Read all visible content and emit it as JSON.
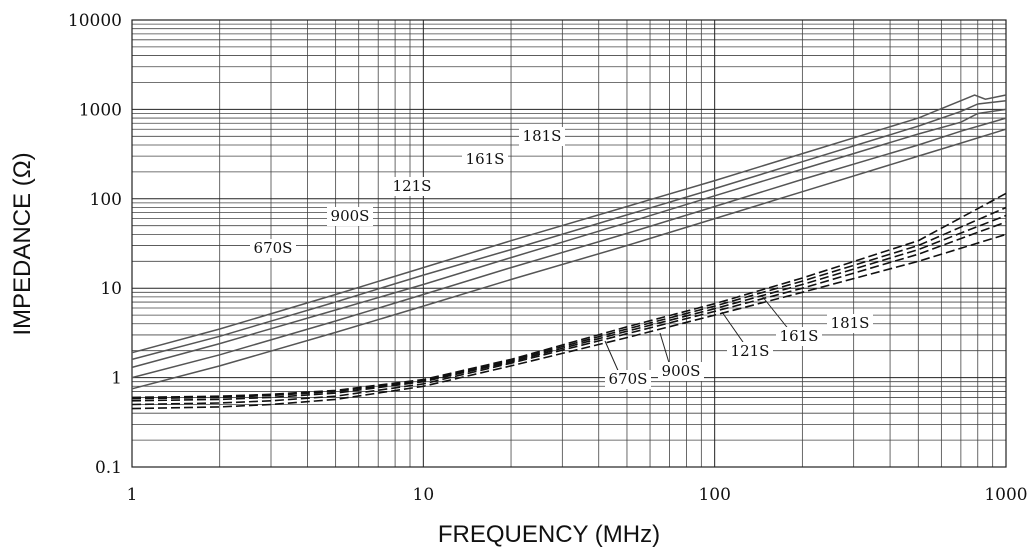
{
  "chart_data": {
    "type": "line",
    "xlabel": "FREQUENCY (MHz)",
    "ylabel": "IMPEDANCE (Ω)",
    "x_scale": "log",
    "y_scale": "log",
    "xlim": [
      1,
      1000
    ],
    "ylim": [
      0.1,
      10000
    ],
    "x_ticks": [
      "1",
      "10",
      "100",
      "1000"
    ],
    "y_ticks": [
      "0.1",
      "1",
      "10",
      "100",
      "1000",
      "10000"
    ],
    "grid": true,
    "series": [
      {
        "name": "670S",
        "group": "solid",
        "style": "solid",
        "label_on_chart": "670S",
        "points": [
          [
            1,
            0.75
          ],
          [
            2,
            1.35
          ],
          [
            5,
            3.2
          ],
          [
            10,
            6.3
          ],
          [
            20,
            12.5
          ],
          [
            50,
            30
          ],
          [
            100,
            60
          ],
          [
            200,
            120
          ],
          [
            500,
            300
          ],
          [
            700,
            420
          ],
          [
            1000,
            600
          ]
        ]
      },
      {
        "name": "900S",
        "group": "solid",
        "style": "solid",
        "label_on_chart": "900S",
        "points": [
          [
            1,
            1.0
          ],
          [
            2,
            1.8
          ],
          [
            5,
            4.3
          ],
          [
            10,
            8.5
          ],
          [
            20,
            17
          ],
          [
            50,
            41
          ],
          [
            100,
            82
          ],
          [
            200,
            165
          ],
          [
            500,
            400
          ],
          [
            700,
            570
          ],
          [
            1000,
            800
          ]
        ]
      },
      {
        "name": "121S",
        "group": "solid",
        "style": "solid",
        "label_on_chart": "121S",
        "points": [
          [
            1,
            1.3
          ],
          [
            2,
            2.4
          ],
          [
            5,
            5.7
          ],
          [
            10,
            11
          ],
          [
            20,
            22
          ],
          [
            50,
            54
          ],
          [
            100,
            108
          ],
          [
            200,
            215
          ],
          [
            500,
            530
          ],
          [
            700,
            720
          ],
          [
            800,
            900
          ],
          [
            1000,
            1000
          ]
        ]
      },
      {
        "name": "161S",
        "group": "solid",
        "style": "solid",
        "label_on_chart": "161S",
        "points": [
          [
            1,
            1.6
          ],
          [
            2,
            2.9
          ],
          [
            5,
            7
          ],
          [
            10,
            14
          ],
          [
            20,
            27
          ],
          [
            50,
            66
          ],
          [
            100,
            130
          ],
          [
            200,
            260
          ],
          [
            500,
            650
          ],
          [
            700,
            950
          ],
          [
            800,
            1150
          ],
          [
            1000,
            1250
          ]
        ]
      },
      {
        "name": "181S",
        "group": "solid",
        "style": "solid",
        "label_on_chart": "181S",
        "points": [
          [
            1,
            1.9
          ],
          [
            2,
            3.5
          ],
          [
            5,
            8.5
          ],
          [
            10,
            17
          ],
          [
            20,
            34
          ],
          [
            50,
            82
          ],
          [
            100,
            160
          ],
          [
            200,
            320
          ],
          [
            500,
            800
          ],
          [
            700,
            1250
          ],
          [
            780,
            1450
          ],
          [
            850,
            1300
          ],
          [
            1000,
            1450
          ]
        ]
      },
      {
        "name": "670S",
        "group": "dashed",
        "style": "dashed",
        "label_on_chart": "670S",
        "points": [
          [
            1,
            0.45
          ],
          [
            2,
            0.47
          ],
          [
            3,
            0.5
          ],
          [
            5,
            0.57
          ],
          [
            10,
            0.8
          ],
          [
            20,
            1.35
          ],
          [
            50,
            2.8
          ],
          [
            100,
            5
          ],
          [
            200,
            9
          ],
          [
            500,
            20
          ],
          [
            1000,
            40
          ]
        ]
      },
      {
        "name": "900S",
        "group": "dashed",
        "style": "dashed",
        "label_on_chart": "900S",
        "points": [
          [
            1,
            0.5
          ],
          [
            2,
            0.52
          ],
          [
            3,
            0.55
          ],
          [
            5,
            0.62
          ],
          [
            10,
            0.85
          ],
          [
            20,
            1.45
          ],
          [
            50,
            3.1
          ],
          [
            100,
            5.5
          ],
          [
            200,
            10
          ],
          [
            500,
            24
          ],
          [
            1000,
            55
          ]
        ]
      },
      {
        "name": "121S",
        "group": "dashed",
        "style": "dashed",
        "label_on_chart": "121S",
        "points": [
          [
            1,
            0.55
          ],
          [
            2,
            0.57
          ],
          [
            3,
            0.6
          ],
          [
            5,
            0.67
          ],
          [
            10,
            0.9
          ],
          [
            20,
            1.5
          ],
          [
            50,
            3.3
          ],
          [
            100,
            5.9
          ],
          [
            200,
            11
          ],
          [
            500,
            27
          ],
          [
            1000,
            65
          ]
        ]
      },
      {
        "name": "161S",
        "group": "dashed",
        "style": "dashed",
        "label_on_chart": "161S",
        "points": [
          [
            1,
            0.58
          ],
          [
            2,
            0.6
          ],
          [
            3,
            0.63
          ],
          [
            5,
            0.7
          ],
          [
            10,
            0.92
          ],
          [
            20,
            1.55
          ],
          [
            50,
            3.5
          ],
          [
            100,
            6.3
          ],
          [
            200,
            12
          ],
          [
            500,
            30
          ],
          [
            1000,
            80
          ]
        ]
      },
      {
        "name": "181S",
        "group": "dashed",
        "style": "dashed",
        "label_on_chart": "181S",
        "points": [
          [
            1,
            0.6
          ],
          [
            2,
            0.62
          ],
          [
            3,
            0.65
          ],
          [
            5,
            0.72
          ],
          [
            10,
            0.95
          ],
          [
            20,
            1.6
          ],
          [
            50,
            3.7
          ],
          [
            100,
            6.7
          ],
          [
            200,
            13
          ],
          [
            500,
            34
          ],
          [
            1000,
            115
          ]
        ]
      }
    ]
  }
}
